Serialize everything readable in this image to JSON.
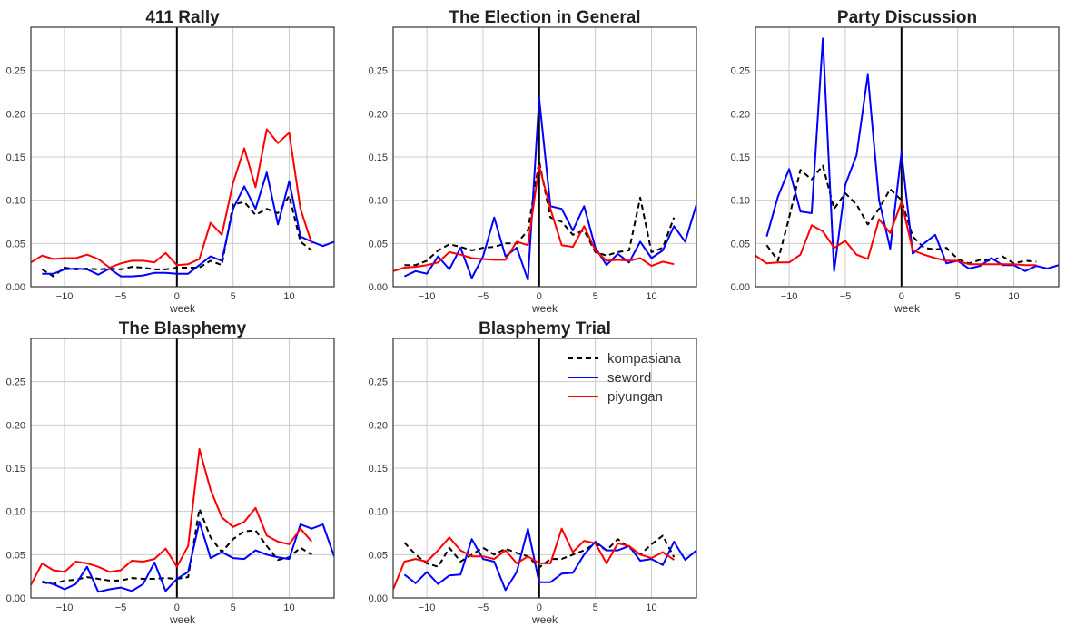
{
  "chart_data": {
    "type": "line",
    "xlabel": "week",
    "xlim": [
      -13,
      14
    ],
    "ylim": [
      0,
      0.3
    ],
    "xticks": [
      -10,
      -5,
      0,
      5,
      10
    ],
    "yticks": [
      "0.00",
      "0.05",
      "0.10",
      "0.15",
      "0.20",
      "0.25"
    ],
    "grid": true,
    "vline_x": 0,
    "legend_placement": "top-right",
    "legend": [
      {
        "name": "kompasiana",
        "color": "#000000",
        "dash": true
      },
      {
        "name": "seword",
        "color": "#0000ff",
        "dash": false
      },
      {
        "name": "piyungan",
        "color": "#ff0000",
        "dash": false
      }
    ],
    "panels": [
      {
        "title": "411 Rally",
        "series": {
          "kompasiana": {
            "x": [
              -12,
              -11,
              -10,
              -9,
              -8,
              -7,
              -6,
              -5,
              -4,
              -3,
              -2,
              -1,
              0,
              1,
              2,
              3,
              4,
              5,
              6,
              7,
              8,
              9,
              10,
              11,
              12
            ],
            "y": [
              0.02,
              0.012,
              0.022,
              0.02,
              0.021,
              0.02,
              0.021,
              0.02,
              0.023,
              0.022,
              0.02,
              0.02,
              0.022,
              0.022,
              0.022,
              0.03,
              0.025,
              0.095,
              0.098,
              0.083,
              0.09,
              0.085,
              0.105,
              0.052,
              0.042
            ]
          },
          "seword": {
            "x": [
              -12,
              -11,
              -10,
              -9,
              -8,
              -7,
              -6,
              -5,
              -4,
              -3,
              -2,
              -1,
              0,
              1,
              2,
              3,
              4,
              5,
              6,
              7,
              8,
              9,
              10,
              11,
              12,
              13,
              14
            ],
            "y": [
              0.015,
              0.015,
              0.02,
              0.021,
              0.02,
              0.014,
              0.021,
              0.012,
              0.012,
              0.013,
              0.016,
              0.016,
              0.015,
              0.015,
              0.025,
              0.035,
              0.03,
              0.09,
              0.116,
              0.09,
              0.132,
              0.072,
              0.122,
              0.058,
              0.052,
              0.047,
              0.052
            ]
          },
          "piyungan": {
            "x": [
              -13,
              -12,
              -11,
              -10,
              -9,
              -8,
              -7,
              -6,
              -5,
              -4,
              -3,
              -2,
              -1,
              0,
              1,
              2,
              3,
              4,
              5,
              6,
              7,
              8,
              9,
              10,
              11,
              12
            ],
            "y": [
              0.028,
              0.036,
              0.032,
              0.033,
              0.033,
              0.037,
              0.032,
              0.022,
              0.027,
              0.03,
              0.03,
              0.028,
              0.039,
              0.025,
              0.026,
              0.032,
              0.074,
              0.06,
              0.12,
              0.16,
              0.115,
              0.182,
              0.166,
              0.178,
              0.09,
              0.05
            ]
          }
        }
      },
      {
        "title": "The Election in General",
        "series": {
          "kompasiana": {
            "x": [
              -12,
              -11,
              -10,
              -9,
              -8,
              -7,
              -6,
              -5,
              -4,
              -3,
              -2,
              -1,
              0,
              1,
              2,
              3,
              4,
              5,
              6,
              7,
              8,
              9,
              10,
              11,
              12
            ],
            "y": [
              0.025,
              0.025,
              0.03,
              0.042,
              0.049,
              0.046,
              0.042,
              0.045,
              0.046,
              0.05,
              0.05,
              0.065,
              0.145,
              0.08,
              0.075,
              0.06,
              0.065,
              0.04,
              0.036,
              0.04,
              0.042,
              0.103,
              0.04,
              0.045,
              0.08
            ]
          },
          "seword": {
            "x": [
              -12,
              -11,
              -10,
              -9,
              -8,
              -7,
              -6,
              -5,
              -4,
              -3,
              -2,
              -1,
              0,
              1,
              2,
              3,
              4,
              5,
              6,
              7,
              8,
              9,
              10,
              11,
              12,
              13,
              14
            ],
            "y": [
              0.012,
              0.018,
              0.015,
              0.035,
              0.02,
              0.045,
              0.01,
              0.035,
              0.08,
              0.035,
              0.045,
              0.008,
              0.218,
              0.093,
              0.09,
              0.065,
              0.093,
              0.045,
              0.025,
              0.038,
              0.028,
              0.052,
              0.033,
              0.042,
              0.07,
              0.052,
              0.095
            ]
          },
          "piyungan": {
            "x": [
              -13,
              -12,
              -11,
              -10,
              -9,
              -8,
              -7,
              -6,
              -5,
              -4,
              -3,
              -2,
              -1,
              0,
              1,
              2,
              3,
              4,
              5,
              6,
              7,
              8,
              9,
              10,
              11,
              12
            ],
            "y": [
              0.018,
              0.022,
              0.023,
              0.025,
              0.028,
              0.04,
              0.037,
              0.033,
              0.032,
              0.031,
              0.031,
              0.052,
              0.048,
              0.14,
              0.09,
              0.048,
              0.046,
              0.07,
              0.042,
              0.03,
              0.031,
              0.03,
              0.033,
              0.024,
              0.029,
              0.026
            ]
          }
        }
      },
      {
        "title": "Party Discussion",
        "series": {
          "kompasiana": {
            "x": [
              -12,
              -11,
              -10,
              -9,
              -8,
              -7,
              -6,
              -5,
              -4,
              -3,
              -2,
              -1,
              0,
              1,
              2,
              3,
              4,
              5,
              6,
              7,
              8,
              9,
              10,
              11,
              12
            ],
            "y": [
              0.048,
              0.03,
              0.08,
              0.135,
              0.124,
              0.14,
              0.09,
              0.108,
              0.095,
              0.072,
              0.09,
              0.113,
              0.1,
              0.058,
              0.045,
              0.043,
              0.045,
              0.032,
              0.027,
              0.031,
              0.03,
              0.035,
              0.027,
              0.03,
              0.029
            ]
          },
          "seword": {
            "x": [
              -12,
              -11,
              -10,
              -9,
              -8,
              -7,
              -6,
              -5,
              -4,
              -3,
              -2,
              -1,
              0,
              1,
              2,
              3,
              4,
              5,
              6,
              7,
              8,
              9,
              10,
              11,
              12,
              13,
              14
            ],
            "y": [
              0.058,
              0.104,
              0.136,
              0.087,
              0.085,
              0.287,
              0.018,
              0.118,
              0.152,
              0.245,
              0.1,
              0.044,
              0.155,
              0.038,
              0.05,
              0.06,
              0.027,
              0.03,
              0.021,
              0.024,
              0.033,
              0.025,
              0.025,
              0.018,
              0.024,
              0.021,
              0.025
            ]
          },
          "piyungan": {
            "x": [
              -13,
              -12,
              -11,
              -10,
              -9,
              -8,
              -7,
              -6,
              -5,
              -4,
              -3,
              -2,
              -1,
              0,
              1,
              2,
              3,
              4,
              5,
              6,
              7,
              8,
              9,
              10,
              11,
              12
            ],
            "y": [
              0.036,
              0.027,
              0.028,
              0.028,
              0.037,
              0.071,
              0.064,
              0.045,
              0.053,
              0.037,
              0.032,
              0.078,
              0.062,
              0.098,
              0.042,
              0.037,
              0.033,
              0.03,
              0.03,
              0.026,
              0.026,
              0.026,
              0.026,
              0.026,
              0.025,
              0.025
            ]
          }
        }
      },
      {
        "title": "The Blasphemy",
        "series": {
          "kompasiana": {
            "x": [
              -12,
              -11,
              -10,
              -9,
              -8,
              -7,
              -6,
              -5,
              -4,
              -3,
              -2,
              -1,
              0,
              1,
              2,
              3,
              4,
              5,
              6,
              7,
              8,
              9,
              10,
              11,
              12
            ],
            "y": [
              0.018,
              0.016,
              0.02,
              0.021,
              0.024,
              0.022,
              0.02,
              0.02,
              0.023,
              0.022,
              0.022,
              0.023,
              0.022,
              0.024,
              0.103,
              0.07,
              0.053,
              0.068,
              0.077,
              0.078,
              0.06,
              0.044,
              0.047,
              0.058,
              0.05
            ]
          },
          "seword": {
            "x": [
              -12,
              -11,
              -10,
              -9,
              -8,
              -7,
              -6,
              -5,
              -4,
              -3,
              -2,
              -1,
              0,
              1,
              2,
              3,
              4,
              5,
              6,
              7,
              8,
              9,
              10,
              11,
              12,
              13,
              14
            ],
            "y": [
              0.019,
              0.016,
              0.01,
              0.016,
              0.036,
              0.007,
              0.01,
              0.012,
              0.008,
              0.016,
              0.041,
              0.008,
              0.022,
              0.03,
              0.088,
              0.046,
              0.053,
              0.046,
              0.045,
              0.055,
              0.05,
              0.047,
              0.045,
              0.085,
              0.08,
              0.085,
              0.048
            ]
          },
          "piyungan": {
            "x": [
              -13,
              -12,
              -11,
              -10,
              -9,
              -8,
              -7,
              -6,
              -5,
              -4,
              -3,
              -2,
              -1,
              0,
              1,
              2,
              3,
              4,
              5,
              6,
              7,
              8,
              9,
              10,
              11,
              12
            ],
            "y": [
              0.015,
              0.04,
              0.032,
              0.03,
              0.042,
              0.04,
              0.036,
              0.03,
              0.032,
              0.043,
              0.042,
              0.045,
              0.057,
              0.036,
              0.06,
              0.172,
              0.125,
              0.093,
              0.082,
              0.088,
              0.104,
              0.072,
              0.065,
              0.062,
              0.08,
              0.065
            ]
          }
        }
      },
      {
        "title": "Blasphemy Trial",
        "series": {
          "kompasiana": {
            "x": [
              -12,
              -11,
              -10,
              -9,
              -8,
              -7,
              -6,
              -5,
              -4,
              -3,
              -2,
              -1,
              0,
              1,
              2,
              3,
              4,
              5,
              6,
              7,
              8,
              9,
              10,
              11,
              12
            ],
            "y": [
              0.064,
              0.05,
              0.04,
              0.036,
              0.058,
              0.042,
              0.05,
              0.058,
              0.05,
              0.057,
              0.052,
              0.048,
              0.035,
              0.045,
              0.045,
              0.05,
              0.055,
              0.063,
              0.055,
              0.068,
              0.058,
              0.05,
              0.062,
              0.072,
              0.047
            ]
          },
          "seword": {
            "x": [
              -12,
              -11,
              -10,
              -9,
              -8,
              -7,
              -6,
              -5,
              -4,
              -3,
              -2,
              -1,
              0,
              1,
              2,
              3,
              4,
              5,
              6,
              7,
              8,
              9,
              10,
              11,
              12,
              13,
              14
            ],
            "y": [
              0.027,
              0.017,
              0.03,
              0.016,
              0.026,
              0.027,
              0.068,
              0.045,
              0.042,
              0.009,
              0.03,
              0.08,
              0.018,
              0.018,
              0.028,
              0.029,
              0.05,
              0.065,
              0.055,
              0.055,
              0.06,
              0.043,
              0.045,
              0.038,
              0.065,
              0.044,
              0.055
            ]
          },
          "piyungan": {
            "x": [
              -13,
              -12,
              -11,
              -10,
              -9,
              -8,
              -7,
              -6,
              -5,
              -4,
              -3,
              -2,
              -1,
              0,
              1,
              2,
              3,
              4,
              5,
              6,
              7,
              8,
              9,
              10,
              11,
              12
            ],
            "y": [
              0.01,
              0.042,
              0.045,
              0.042,
              0.055,
              0.07,
              0.055,
              0.048,
              0.048,
              0.045,
              0.055,
              0.04,
              0.048,
              0.04,
              0.04,
              0.08,
              0.053,
              0.066,
              0.063,
              0.04,
              0.063,
              0.06,
              0.05,
              0.046,
              0.053,
              0.044
            ]
          }
        }
      }
    ]
  }
}
